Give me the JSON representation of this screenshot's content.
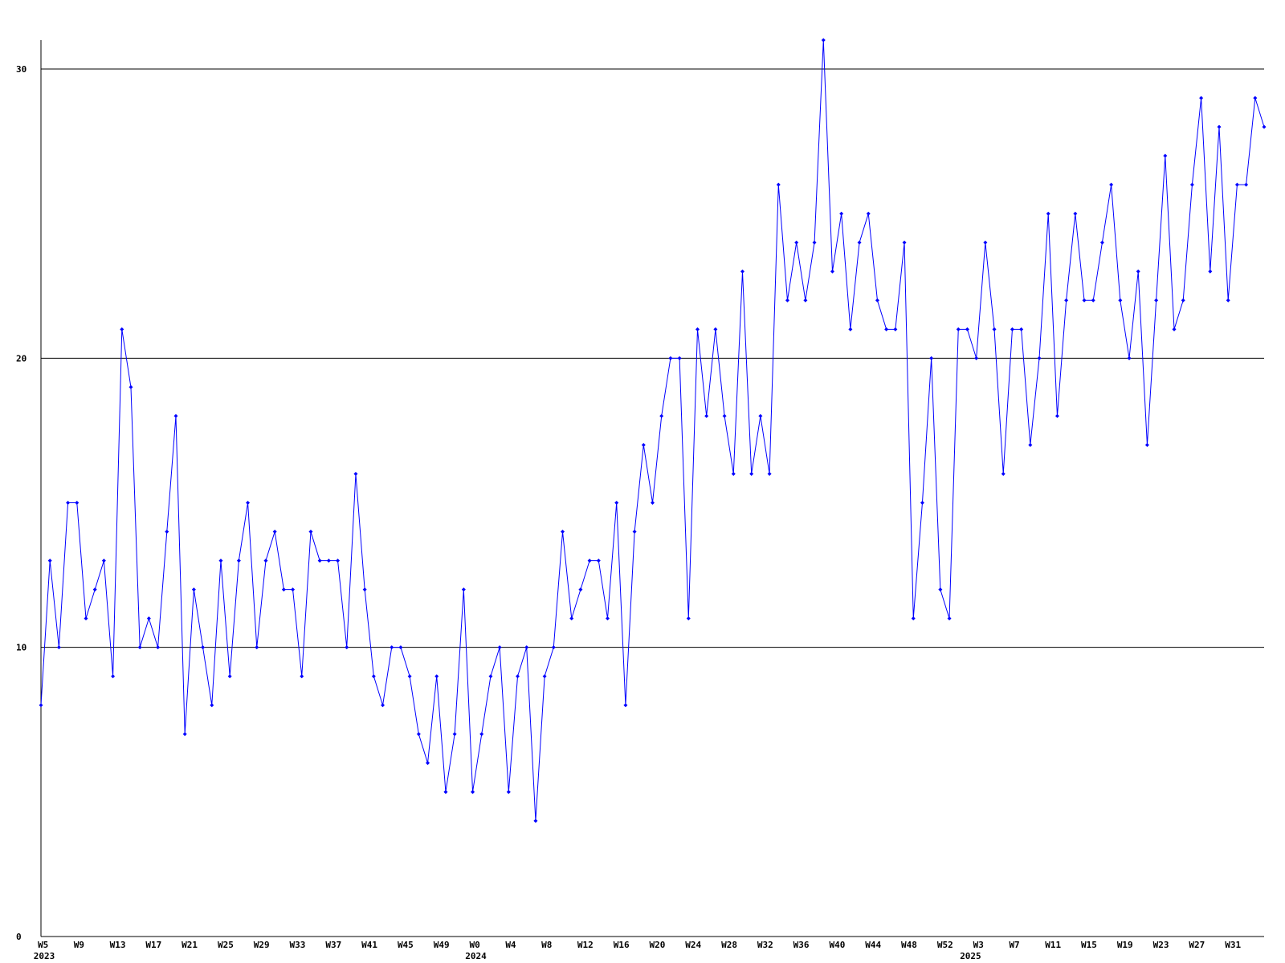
{
  "chart_data": {
    "type": "line",
    "color": "#0000ff",
    "grid": true,
    "ylim": [
      0,
      31
    ],
    "yticks": [
      0,
      10,
      20,
      30
    ],
    "categories": [
      "W5",
      null,
      null,
      null,
      "W9",
      null,
      null,
      null,
      "W13",
      null,
      null,
      null,
      "W17",
      null,
      null,
      null,
      "W21",
      null,
      null,
      null,
      "W25",
      null,
      null,
      null,
      "W29",
      null,
      null,
      null,
      "W33",
      null,
      null,
      null,
      "W37",
      null,
      null,
      null,
      "W41",
      null,
      null,
      null,
      "W45",
      null,
      null,
      null,
      "W49",
      null,
      null,
      null,
      "W0",
      null,
      null,
      null,
      "W4",
      null,
      null,
      null,
      "W8",
      null,
      null,
      null,
      "W12",
      null,
      null,
      null,
      "W16",
      null,
      null,
      null,
      "W20",
      null,
      null,
      null,
      "W24",
      null,
      null,
      null,
      "W28",
      null,
      null,
      null,
      "W32",
      null,
      null,
      null,
      "W36",
      null,
      null,
      null,
      "W40",
      null,
      null,
      null,
      "W44",
      null,
      null,
      null,
      "W48",
      null,
      null,
      null,
      "W52",
      null,
      null,
      null,
      "W3",
      null,
      null,
      null,
      "W7",
      null,
      null,
      null,
      "W11",
      null,
      null,
      null,
      "W15",
      null,
      null,
      null,
      "W19",
      null,
      null,
      null,
      "W23",
      null,
      null,
      null,
      "W27",
      null,
      null,
      null,
      "W31",
      null,
      null,
      null,
      null
    ],
    "year_labels": [
      "2023",
      null,
      null,
      null,
      null,
      null,
      null,
      null,
      null,
      null,
      null,
      null,
      null,
      null,
      null,
      null,
      null,
      null,
      null,
      null,
      null,
      null,
      null,
      null,
      null,
      null,
      null,
      null,
      null,
      null,
      null,
      null,
      null,
      null,
      null,
      null,
      null,
      null,
      null,
      null,
      null,
      null,
      null,
      null,
      null,
      null,
      null,
      null,
      "2024",
      null,
      null,
      null,
      null,
      null,
      null,
      null,
      null,
      null,
      null,
      null,
      null,
      null,
      null,
      null,
      null,
      null,
      null,
      null,
      null,
      null,
      null,
      null,
      null,
      null,
      null,
      null,
      null,
      null,
      null,
      null,
      null,
      null,
      null,
      null,
      null,
      null,
      null,
      null,
      null,
      null,
      null,
      null,
      null,
      null,
      null,
      null,
      null,
      null,
      null,
      null,
      null,
      null,
      null,
      "2025",
      null,
      null,
      null,
      null,
      null,
      null,
      null,
      null,
      null,
      null,
      null,
      null,
      null,
      null,
      null,
      null,
      null,
      null,
      null,
      null,
      null,
      null,
      null,
      null,
      null,
      null,
      null,
      null,
      null,
      null,
      null,
      null,
      null,
      null
    ],
    "values": [
      8,
      13,
      10,
      15,
      15,
      11,
      12,
      13,
      9,
      21,
      19,
      10,
      11,
      10,
      14,
      18,
      7,
      12,
      10,
      8,
      13,
      9,
      13,
      15,
      10,
      13,
      14,
      12,
      12,
      9,
      14,
      13,
      13,
      13,
      10,
      16,
      12,
      9,
      8,
      10,
      10,
      9,
      7,
      6,
      9,
      5,
      7,
      12,
      5,
      7,
      9,
      10,
      5,
      9,
      10,
      4,
      9,
      10,
      14,
      11,
      12,
      13,
      13,
      11,
      15,
      8,
      14,
      17,
      15,
      18,
      20,
      20,
      11,
      21,
      18,
      21,
      18,
      16,
      23,
      16,
      18,
      16,
      26,
      22,
      24,
      22,
      24,
      31,
      23,
      25,
      21,
      24,
      25,
      22,
      21,
      21,
      24,
      11,
      15,
      20,
      12,
      11,
      21,
      21,
      20,
      24,
      21,
      16,
      21,
      21,
      17,
      20,
      25,
      18,
      22,
      25,
      22,
      22,
      24,
      26,
      22,
      20,
      23,
      17,
      22,
      27,
      21,
      22,
      26,
      29,
      23,
      28,
      22,
      26,
      26,
      29,
      28
    ]
  }
}
